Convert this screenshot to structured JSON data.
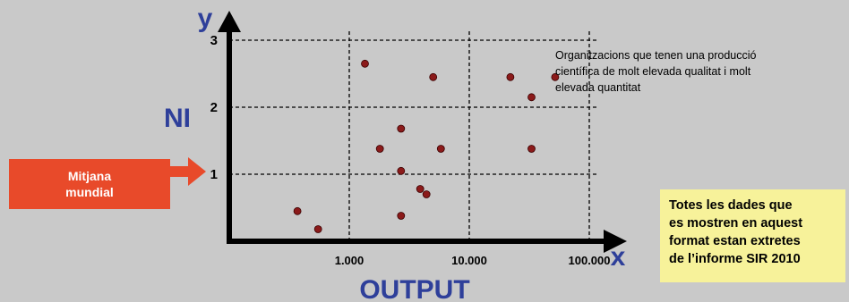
{
  "chart_data": {
    "type": "scatter",
    "x_axis": {
      "label": "OUTPUT",
      "letter": "x",
      "scale": "log",
      "range": [
        100,
        100000
      ],
      "ticks": [
        1000,
        10000,
        100000
      ],
      "tick_labels": [
        "1.000",
        "10.000",
        "100.000"
      ]
    },
    "y_axis": {
      "label": "NI",
      "letter": "y",
      "range": [
        0,
        3.2
      ],
      "ticks": [
        1,
        2,
        3
      ],
      "tick_labels": [
        "1",
        "2",
        "3"
      ]
    },
    "grid": "dashed",
    "points": [
      {
        "x": 370,
        "y": 0.45
      },
      {
        "x": 550,
        "y": 0.18
      },
      {
        "x": 1350,
        "y": 2.65
      },
      {
        "x": 1800,
        "y": 1.38
      },
      {
        "x": 2700,
        "y": 1.68
      },
      {
        "x": 2700,
        "y": 1.05
      },
      {
        "x": 2700,
        "y": 0.38
      },
      {
        "x": 3900,
        "y": 0.78
      },
      {
        "x": 4400,
        "y": 0.7
      },
      {
        "x": 5000,
        "y": 2.45
      },
      {
        "x": 5800,
        "y": 1.38
      },
      {
        "x": 22000,
        "y": 2.45
      },
      {
        "x": 33000,
        "y": 2.15
      },
      {
        "x": 33000,
        "y": 1.38
      },
      {
        "x": 52000,
        "y": 2.45
      }
    ],
    "point_color": "#8b1a1a",
    "annotation_lines": [
      "Organitzacions que tenen una producció",
      "científica de molt elevada qualitat i molt",
      "elevada quantitat"
    ]
  },
  "callout": {
    "lines": [
      "Mitjana",
      "mundial"
    ],
    "color": "#e84a2a"
  },
  "source_note": {
    "lines": [
      "Totes les dades que",
      "es mostren en aquest",
      "format estan extretes",
      "de l’informe SIR 2010"
    ],
    "color": "#f7f29a"
  }
}
